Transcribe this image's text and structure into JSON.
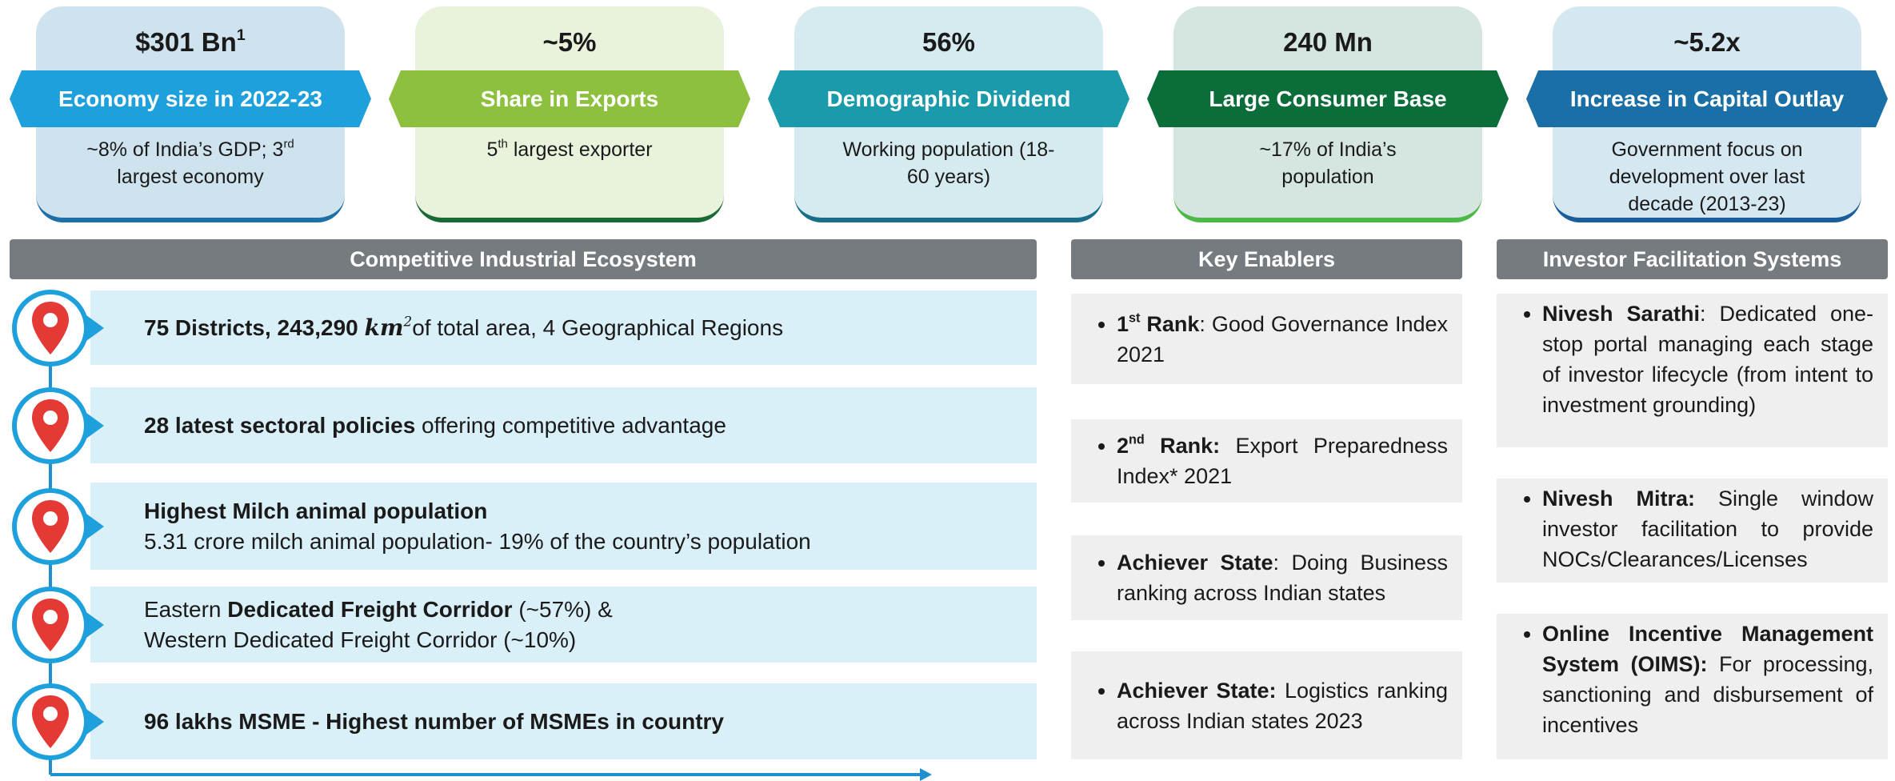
{
  "kpis": [
    {
      "value": [
        {
          "t": "$301 Bn"
        },
        {
          "t": "1",
          "sup": true
        }
      ],
      "label": "Economy size in 2022-23",
      "desc": [
        {
          "t": "~8% of India’s GDP; 3"
        },
        {
          "t": "rd",
          "sup": true
        },
        {
          "t": " largest economy"
        }
      ]
    },
    {
      "value": [
        {
          "t": "~5%"
        }
      ],
      "label": "Share in Exports",
      "desc": [
        {
          "t": "5"
        },
        {
          "t": "th",
          "sup": true
        },
        {
          "t": " largest exporter"
        }
      ]
    },
    {
      "value": [
        {
          "t": "56%"
        }
      ],
      "label": "Demographic Dividend",
      "desc": [
        {
          "t": "Working population (18-60 years)"
        }
      ]
    },
    {
      "value": [
        {
          "t": "240 Mn"
        }
      ],
      "label": "Large Consumer Base",
      "desc": [
        {
          "t": "~17% of India’s population"
        }
      ]
    },
    {
      "value": [
        {
          "t": "~5.2x"
        }
      ],
      "label": "Increase in Capital Outlay",
      "desc": [
        {
          "t": "Government focus on development over last decade (2013-23)"
        }
      ]
    }
  ],
  "ecosystem": {
    "title": "Competitive Industrial Ecosystem",
    "rows": [
      {
        "lines": [
          [
            {
              "t": "75 Districts, 243,290 ",
              "b": true
            },
            {
              "t": "km",
              "i": true,
              "b": true
            },
            {
              "t": "2",
              "sup": true,
              "i": true
            },
            {
              "t": "of total area, 4 Geographical Regions"
            }
          ]
        ]
      },
      {
        "lines": [
          [
            {
              "t": "28 latest sectoral policies",
              "b": true
            },
            {
              "t": " offering competitive advantage"
            }
          ]
        ]
      },
      {
        "lines": [
          [
            {
              "t": "Highest Milch animal population",
              "b": true
            }
          ],
          [
            {
              "t": "5.31 crore milch animal population-  19% of the country’s population"
            }
          ]
        ]
      },
      {
        "lines": [
          [
            {
              "t": "Eastern "
            },
            {
              "t": "Dedicated Freight Corridor",
              "b": true
            },
            {
              "t": " (~57%) &"
            }
          ],
          [
            {
              "t": "Western Dedicated Freight Corridor (~10%)"
            }
          ]
        ]
      },
      {
        "lines": [
          [
            {
              "t": "96 lakhs MSME - Highest number of MSMEs in country",
              "b": true
            }
          ]
        ]
      }
    ]
  },
  "enablers": {
    "title": "Key Enablers",
    "items": [
      [
        {
          "t": "1",
          "b": true
        },
        {
          "t": "st",
          "b": true,
          "sup": true
        },
        {
          "t": " Rank",
          "b": true
        },
        {
          "t": ": Good Governance Index 2021"
        }
      ],
      [
        {
          "t": "2",
          "b": true
        },
        {
          "t": "nd",
          "b": true,
          "sup": true
        },
        {
          "t": " Rank:",
          "b": true
        },
        {
          "t": " Export Preparedness Index* 2021"
        }
      ],
      [
        {
          "t": "Achiever State",
          "b": true
        },
        {
          "t": ": Doing Business ranking across Indian states"
        }
      ],
      [
        {
          "t": "Achiever State:",
          "b": true
        },
        {
          "t": " Logistics ranking across Indian states 2023"
        }
      ]
    ]
  },
  "investor": {
    "title": "Investor Facilitation Systems",
    "items": [
      [
        {
          "t": "Nivesh Sarathi",
          "b": true
        },
        {
          "t": ": Dedicated one-stop portal managing each stage of investor lifecycle (from intent to investment grounding)"
        }
      ],
      [
        {
          "t": "Nivesh Mitra:",
          "b": true
        },
        {
          "t": " Single window investor facilitation to provide NOCs/Clearances/Licenses"
        }
      ],
      [
        {
          "t": "Online Incentive Management System (OIMS):",
          "b": true
        },
        {
          "t": " For processing, sanctioning and disbursement of incentives"
        }
      ]
    ]
  }
}
